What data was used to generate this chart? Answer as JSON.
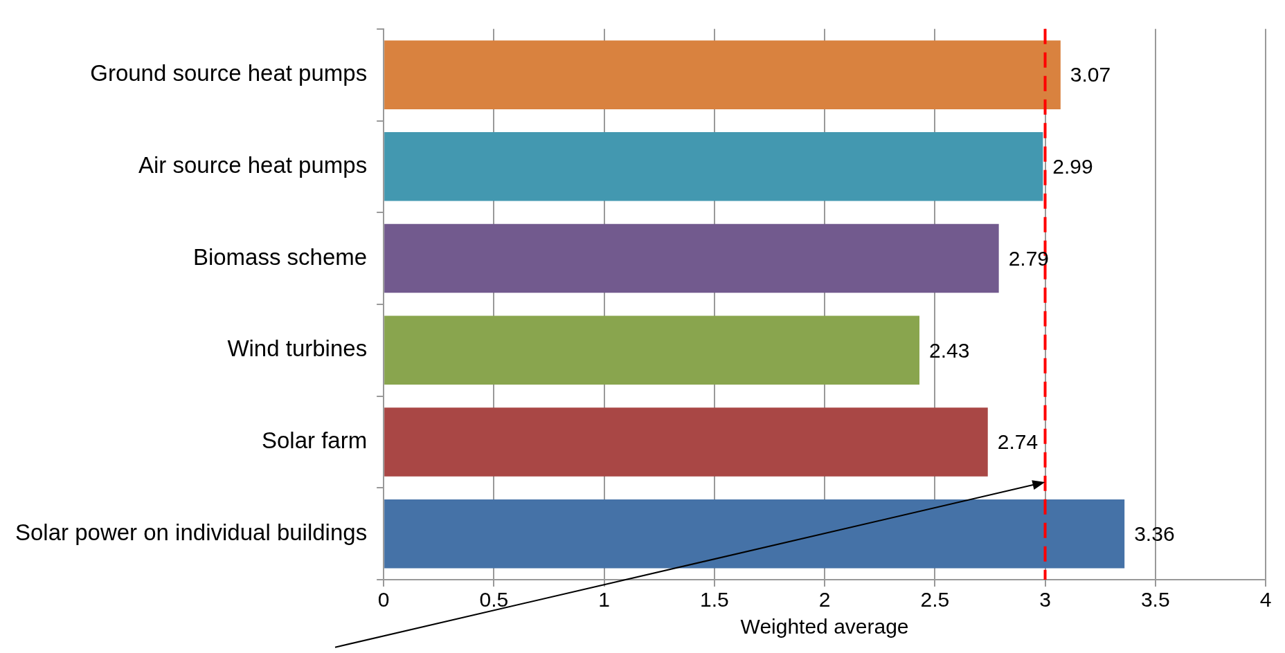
{
  "chart_data": {
    "type": "bar",
    "orientation": "horizontal",
    "xlabel": "Weighted average",
    "categories": [
      "Ground source heat pumps",
      "Air source heat pumps",
      "Biomass scheme",
      "Wind turbines",
      "Solar farm",
      "Solar power on individual buildings"
    ],
    "values": [
      3.07,
      2.99,
      2.79,
      2.43,
      2.74,
      3.36
    ],
    "colors": [
      "#d9823f",
      "#4398b0",
      "#725a8e",
      "#89a54e",
      "#a94745",
      "#4572a7"
    ],
    "xlim": [
      0,
      4
    ],
    "xticks": [
      0,
      0.5,
      1,
      1.5,
      2,
      2.5,
      3,
      3.5,
      4
    ],
    "grid": "x",
    "legend": false,
    "data_labels": true,
    "ref_lines": [
      {
        "axis": "x",
        "value": 3,
        "color": "#ff0000",
        "line_style": "dashed"
      }
    ]
  }
}
